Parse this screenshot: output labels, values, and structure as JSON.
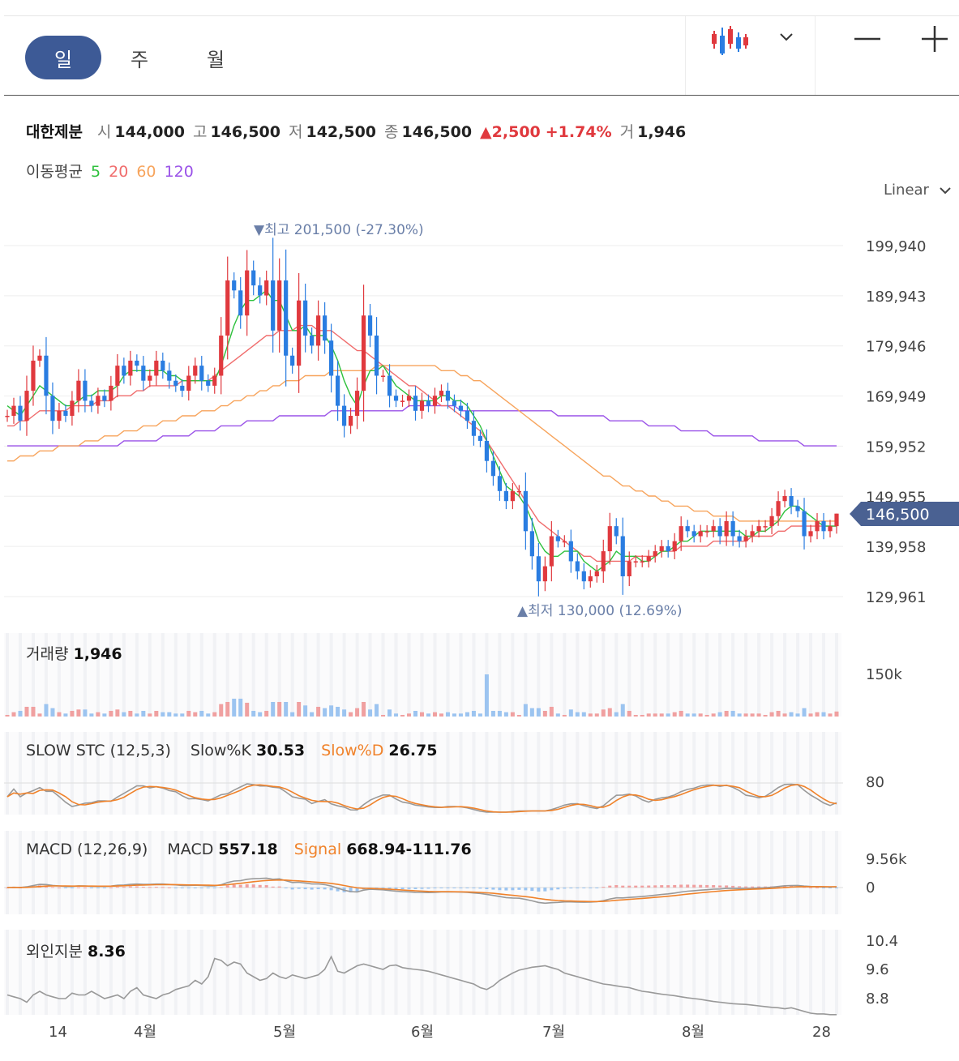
{
  "toolbar": {
    "tabs": [
      "일",
      "주",
      "월"
    ],
    "active_tab": 0,
    "chart_type_icon": "candlestick-icon",
    "dropdown_icon": "chevron-down-icon",
    "zoom_out_icon": "minus-icon",
    "zoom_in_icon": "plus-icon"
  },
  "quote": {
    "name": "대한제분",
    "open_label": "시",
    "open": "144,000",
    "high_label": "고",
    "high": "146,500",
    "low_label": "저",
    "low": "142,500",
    "close_label": "종",
    "close": "146,500",
    "change": "▲2,500",
    "change_pct": "+1.74%",
    "volume_label": "거",
    "volume": "1,946"
  },
  "ma_legend": {
    "label": "이동평균",
    "p5": "5",
    "p20": "20",
    "p60": "60",
    "p120": "120"
  },
  "scale_mode": "Linear",
  "colors": {
    "up": "#e0393e",
    "down": "#2a7de1",
    "ma5": "#2ec13d",
    "ma20": "#f06c6c",
    "ma60": "#f7a45c",
    "ma120": "#9a52e8",
    "accent": "#3d5a96",
    "orange": "#f0822a"
  },
  "price_panel": {
    "y_ticks": [
      "199,940",
      "189,943",
      "179,946",
      "169,949",
      "159,952",
      "149,955",
      "139,958",
      "129,961"
    ],
    "current_price_tag": "146,500",
    "max_label": "▼최고 201,500 (-27.30%)",
    "min_label": "▲최저 130,000 (12.69%)"
  },
  "volume_panel": {
    "label": "거래량",
    "value": "1,946",
    "tick": "150k"
  },
  "stoch_panel": {
    "label": "SLOW STC (12,5,3)",
    "k_label": "Slow%K",
    "k_value": "30.53",
    "d_label": "Slow%D",
    "d_value": "26.75",
    "tick": "80"
  },
  "macd_panel": {
    "label": "MACD (12,26,9)",
    "macd_label": "MACD",
    "macd_value": "557.18",
    "signal_label": "Signal",
    "signal_value": "668.94-111.76",
    "ticks": [
      "9.56k",
      "0"
    ]
  },
  "foreign_panel": {
    "label": "외인지분",
    "value": "8.36",
    "ticks": [
      "10.4",
      "9.6",
      "8.8"
    ]
  },
  "x_ticks": [
    "14",
    "4월",
    "5월",
    "6월",
    "7월",
    "8월",
    "28"
  ],
  "chart_data": {
    "type": "candlestick",
    "ylim": [
      129961,
      199940
    ],
    "high": 201500,
    "low": 130000,
    "last": {
      "open": 144000,
      "high": 146500,
      "low": 142500,
      "close": 146500,
      "volume": 1946
    },
    "close": [
      166000,
      168000,
      165000,
      171000,
      177000,
      178000,
      170000,
      165000,
      167000,
      166000,
      169000,
      173000,
      169000,
      168000,
      170000,
      169000,
      172000,
      176000,
      174000,
      177000,
      176000,
      173000,
      174000,
      177000,
      175000,
      173000,
      172000,
      171000,
      174000,
      176000,
      173000,
      172000,
      174000,
      182000,
      193000,
      191000,
      186000,
      195000,
      192000,
      190000,
      193000,
      183000,
      193000,
      178000,
      176000,
      189000,
      182000,
      180000,
      186000,
      181000,
      174000,
      168000,
      164000,
      166000,
      171000,
      186000,
      182000,
      174000,
      174000,
      170000,
      169000,
      169000,
      170000,
      167000,
      169000,
      168000,
      170000,
      171000,
      169000,
      168000,
      167000,
      165000,
      162000,
      161000,
      157000,
      154000,
      151000,
      149000,
      151000,
      151000,
      143000,
      138000,
      133000,
      136000,
      142000,
      141000,
      141000,
      137000,
      135000,
      133000,
      134000,
      135000,
      139000,
      144000,
      142000,
      134000,
      137000,
      137000,
      137000,
      138000,
      139000,
      140000,
      139000,
      141000,
      144000,
      143000,
      142000,
      143000,
      143000,
      144000,
      142000,
      145000,
      142000,
      141000,
      142000,
      143000,
      144000,
      144000,
      146000,
      149000,
      150000,
      148000,
      147000,
      142000,
      143000,
      145000,
      143000,
      144000,
      146500
    ],
    "ma5": [
      168000,
      167000,
      166000,
      168000,
      170000,
      172000,
      171000,
      170000,
      169000,
      168000,
      168000,
      169000,
      170000,
      170000,
      171000,
      171000,
      171000,
      172000,
      174000,
      175000,
      175000,
      175000,
      175000,
      175000,
      175000,
      174000,
      174000,
      173000,
      173000,
      173000,
      173000,
      173000,
      173000,
      176000,
      180000,
      184000,
      187000,
      189000,
      189000,
      190000,
      191000,
      189000,
      189000,
      186000,
      183000,
      183000,
      184000,
      182000,
      182000,
      182000,
      180000,
      177000,
      173000,
      170000,
      168000,
      172000,
      175000,
      175000,
      176000,
      174000,
      172000,
      171000,
      170000,
      169000,
      169000,
      169000,
      169000,
      170000,
      170000,
      169000,
      169000,
      168000,
      166000,
      164000,
      161000,
      158000,
      155000,
      152000,
      151000,
      150000,
      148000,
      145000,
      141000,
      139000,
      138000,
      138000,
      139000,
      139000,
      139000,
      137000,
      136000,
      135000,
      136000,
      137000,
      139000,
      138000,
      138000,
      138000,
      137000,
      137000,
      138000,
      139000,
      139000,
      140000,
      141000,
      141000,
      142000,
      143000,
      143000,
      143000,
      143000,
      143000,
      143000,
      143000,
      142000,
      142000,
      143000,
      143000,
      144000,
      145000,
      147000,
      148000,
      148000,
      147000,
      146000,
      145000,
      144000,
      144000,
      144000
    ],
    "ma20": [
      164000,
      164000,
      165000,
      165000,
      166000,
      167000,
      167000,
      167000,
      167000,
      167000,
      168000,
      168000,
      168000,
      168000,
      169000,
      169000,
      169000,
      170000,
      170000,
      170000,
      171000,
      171000,
      172000,
      172000,
      172000,
      172000,
      172000,
      173000,
      173000,
      173000,
      173000,
      173000,
      174000,
      175000,
      176000,
      177000,
      178000,
      179000,
      180000,
      181000,
      182000,
      182000,
      183000,
      183000,
      183000,
      184000,
      184000,
      184000,
      183000,
      183000,
      183000,
      182000,
      181000,
      180000,
      179000,
      179000,
      178000,
      177000,
      176000,
      175000,
      174000,
      173000,
      172000,
      172000,
      171000,
      170000,
      169000,
      168000,
      168000,
      167000,
      166000,
      165000,
      164000,
      163000,
      161000,
      159000,
      157000,
      155000,
      153000,
      151000,
      149000,
      147000,
      145000,
      144000,
      143000,
      142000,
      141000,
      140000,
      139000,
      138000,
      138000,
      137000,
      137000,
      137000,
      137000,
      137000,
      137000,
      138000,
      138000,
      138000,
      138000,
      139000,
      139000,
      139000,
      140000,
      140000,
      140000,
      140000,
      140000,
      141000,
      141000,
      141000,
      141000,
      141000,
      141000,
      142000,
      142000,
      142000,
      142000,
      143000,
      143000,
      144000,
      144000,
      144000,
      144000,
      144000,
      144000,
      144000,
      144000
    ],
    "ma60": [
      157000,
      157000,
      158000,
      158000,
      158000,
      159000,
      159000,
      159000,
      160000,
      160000,
      160000,
      160000,
      161000,
      161000,
      161000,
      162000,
      162000,
      162000,
      163000,
      163000,
      163000,
      164000,
      164000,
      164000,
      165000,
      165000,
      165000,
      166000,
      166000,
      166000,
      167000,
      167000,
      167000,
      168000,
      168000,
      169000,
      169000,
      170000,
      170000,
      171000,
      171000,
      172000,
      172000,
      173000,
      173000,
      173000,
      174000,
      174000,
      174000,
      174000,
      175000,
      175000,
      175000,
      175000,
      175000,
      175000,
      175000,
      176000,
      176000,
      176000,
      176000,
      176000,
      176000,
      176000,
      176000,
      176000,
      176000,
      175000,
      175000,
      175000,
      174000,
      174000,
      173000,
      173000,
      172000,
      171000,
      170000,
      169000,
      168000,
      167000,
      166000,
      165000,
      164000,
      163000,
      162000,
      161000,
      160000,
      159000,
      158000,
      157000,
      156000,
      155000,
      154000,
      154000,
      153000,
      152000,
      152000,
      151000,
      151000,
      150000,
      150000,
      149000,
      149000,
      148000,
      148000,
      148000,
      147000,
      147000,
      147000,
      146000,
      146000,
      146000,
      146000,
      145000,
      145000,
      145000,
      145000,
      145000,
      145000,
      145000,
      145000,
      145000,
      145000,
      145000,
      145000,
      145000,
      145000,
      145000,
      145000
    ],
    "ma120": [
      160000,
      160000,
      160000,
      160000,
      160000,
      160000,
      160000,
      160000,
      160000,
      160000,
      160000,
      160000,
      160000,
      160000,
      160000,
      160000,
      160000,
      160000,
      161000,
      161000,
      161000,
      161000,
      161000,
      161000,
      162000,
      162000,
      162000,
      162000,
      162000,
      163000,
      163000,
      163000,
      163000,
      164000,
      164000,
      164000,
      164000,
      165000,
      165000,
      165000,
      165000,
      165000,
      166000,
      166000,
      166000,
      166000,
      166000,
      166000,
      166000,
      166000,
      167000,
      167000,
      167000,
      167000,
      167000,
      167000,
      167000,
      167000,
      167000,
      167000,
      167000,
      167000,
      168000,
      168000,
      168000,
      168000,
      168000,
      168000,
      168000,
      168000,
      167000,
      167000,
      167000,
      167000,
      167000,
      167000,
      167000,
      167000,
      167000,
      167000,
      167000,
      167000,
      167000,
      167000,
      167000,
      166000,
      166000,
      166000,
      166000,
      166000,
      166000,
      166000,
      166000,
      165000,
      165000,
      165000,
      165000,
      165000,
      165000,
      164000,
      164000,
      164000,
      164000,
      164000,
      163000,
      163000,
      163000,
      163000,
      163000,
      162000,
      162000,
      162000,
      162000,
      162000,
      162000,
      162000,
      161000,
      161000,
      161000,
      161000,
      161000,
      161000,
      161000,
      160000,
      160000,
      160000,
      160000,
      160000,
      160000
    ],
    "foreign": [
      8.9,
      8.85,
      8.8,
      8.7,
      8.9,
      9.0,
      8.9,
      8.85,
      8.8,
      8.8,
      8.95,
      8.9,
      8.9,
      9.0,
      8.9,
      8.8,
      8.85,
      8.9,
      8.8,
      9.0,
      9.1,
      8.9,
      8.85,
      8.8,
      8.9,
      8.95,
      9.05,
      9.1,
      9.15,
      9.3,
      9.2,
      9.4,
      9.9,
      9.85,
      9.7,
      9.8,
      9.75,
      9.5,
      9.4,
      9.3,
      9.35,
      9.5,
      9.4,
      9.35,
      9.45,
      9.4,
      9.35,
      9.4,
      9.45,
      9.6,
      9.95,
      9.55,
      9.5,
      9.6,
      9.7,
      9.75,
      9.7,
      9.65,
      9.6,
      9.7,
      9.72,
      9.65,
      9.62,
      9.6,
      9.58,
      9.55,
      9.5,
      9.45,
      9.4,
      9.35,
      9.3,
      9.25,
      9.2,
      9.1,
      9.05,
      9.15,
      9.3,
      9.4,
      9.5,
      9.58,
      9.62,
      9.66,
      9.68,
      9.7,
      9.65,
      9.6,
      9.5,
      9.45,
      9.4,
      9.35,
      9.3,
      9.25,
      9.2,
      9.18,
      9.15,
      9.12,
      9.1,
      9.05,
      9.0,
      8.98,
      8.95,
      8.92,
      8.9,
      8.88,
      8.85,
      8.82,
      8.8,
      8.78,
      8.75,
      8.72,
      8.7,
      8.68,
      8.66,
      8.65,
      8.64,
      8.62,
      8.6,
      8.58,
      8.56,
      8.55,
      8.52,
      8.55,
      8.5,
      8.45,
      8.4,
      8.38,
      8.38,
      8.36,
      8.36
    ]
  }
}
